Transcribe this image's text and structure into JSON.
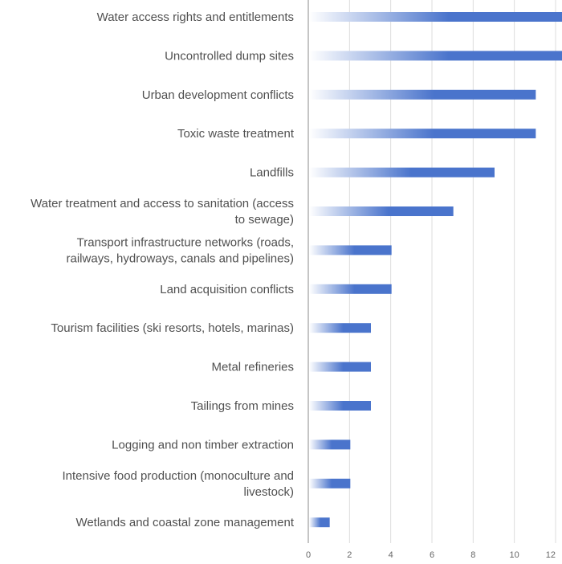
{
  "chart_data": {
    "type": "bar",
    "orientation": "horizontal",
    "title": "",
    "xlabel": "",
    "ylabel": "",
    "xlim": [
      0,
      12
    ],
    "xticks": [
      0,
      2,
      4,
      6,
      8,
      10,
      12
    ],
    "grid": true,
    "legend": "none",
    "colors": {
      "bar_start": "#ffffff",
      "bar_end": "#4a74cc",
      "axis": "#9e9e9e",
      "grid": "#dddddd",
      "label": "#505050"
    },
    "categories": [
      [
        "Water access rights and entitlements"
      ],
      [
        "Uncontrolled dump sites"
      ],
      [
        "Urban development conflicts"
      ],
      [
        "Toxic waste treatment"
      ],
      [
        "Landfills"
      ],
      [
        "Water treatment and access to sanitation (access",
        "to sewage)"
      ],
      [
        "Transport infrastructure networks (roads,",
        "railways, hydroways, canals and pipelines)"
      ],
      [
        "Land acquisition conflicts"
      ],
      [
        "Tourism facilities (ski resorts, hotels, marinas)"
      ],
      [
        "Metal refineries"
      ],
      [
        "Tailings from mines"
      ],
      [
        "Logging and non timber extraction"
      ],
      [
        "Intensive food production (monoculture and",
        "livestock)"
      ],
      [
        "Wetlands and coastal zone management"
      ]
    ],
    "values": [
      13,
      13,
      11,
      11,
      9,
      7,
      4,
      4,
      3,
      3,
      3,
      2,
      2,
      1
    ]
  }
}
